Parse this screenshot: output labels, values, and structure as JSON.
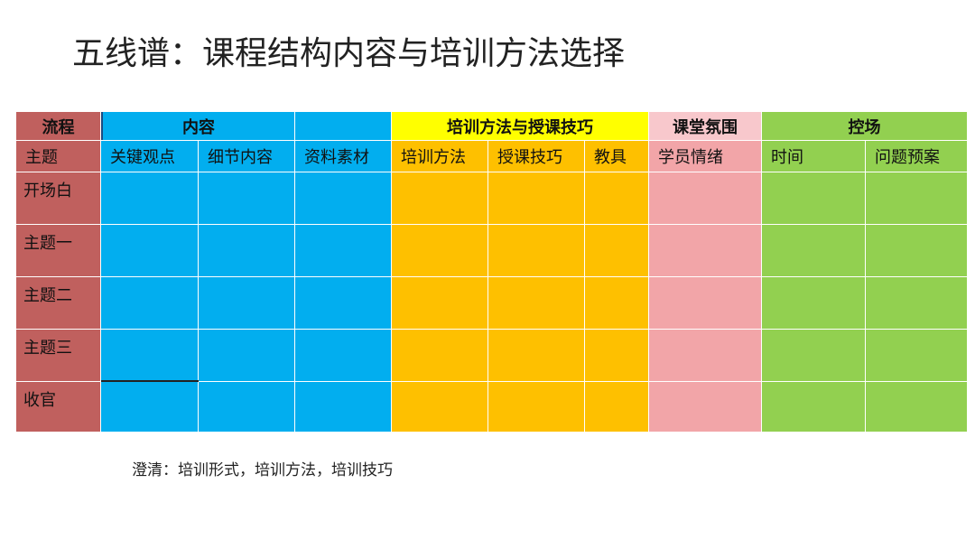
{
  "title": "五线谱：课程结构内容与培训方法选择",
  "groups": {
    "process": "流程",
    "content": "内容",
    "method": "培训方法与授课技巧",
    "atmosphere": "课堂氛围",
    "control": "控场"
  },
  "columns": [
    "主题",
    "关键观点",
    "细节内容",
    "资料素材",
    "培训方法",
    "授课技巧",
    "教具",
    "学员情绪",
    "时间",
    "问题预案"
  ],
  "rows": [
    "开场白",
    "主题一",
    "主题二",
    "主题三",
    "收官"
  ],
  "note": "澄清：培训形式，培训方法，培训技巧",
  "colors": {
    "process": "#c0605e",
    "content": "#02aeef",
    "method_header": "#ffff00",
    "method": "#fec000",
    "atmosphere": "#f2a5a8",
    "control": "#92d050"
  }
}
